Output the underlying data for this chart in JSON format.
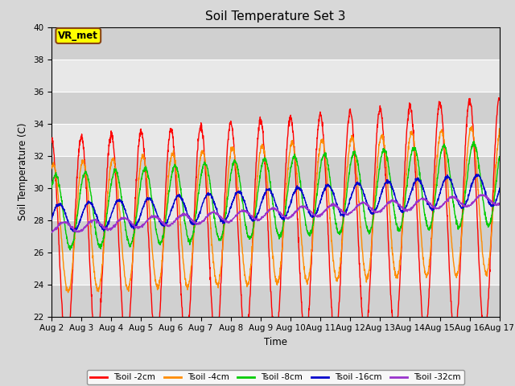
{
  "title": "Soil Temperature Set 3",
  "xlabel": "Time",
  "ylabel": "Soil Temperature (C)",
  "ylim": [
    22,
    40
  ],
  "xlim": [
    0,
    15
  ],
  "yticks": [
    22,
    24,
    26,
    28,
    30,
    32,
    34,
    36,
    38,
    40
  ],
  "xtick_labels": [
    "Aug 2",
    "Aug 3",
    "Aug 4",
    "Aug 5",
    "Aug 6",
    "Aug 7",
    "Aug 8",
    "Aug 9",
    "Aug 10",
    "Aug 11",
    "Aug 12",
    "Aug 13",
    "Aug 14",
    "Aug 15",
    "Aug 16",
    "Aug 17"
  ],
  "fig_bg_color": "#d8d8d8",
  "plot_bg_color": "#e8e8e8",
  "alt_band_color": "#d0d0d0",
  "line_colors": {
    "Tsoil -2cm": "#ff0000",
    "Tsoil -4cm": "#ff8c00",
    "Tsoil -8cm": "#00cc00",
    "Tsoil -16cm": "#0000cc",
    "Tsoil -32cm": "#9933cc"
  },
  "annotation_text": "VR_met",
  "annotation_bg": "#ffff00",
  "annotation_border": "#8b4513"
}
